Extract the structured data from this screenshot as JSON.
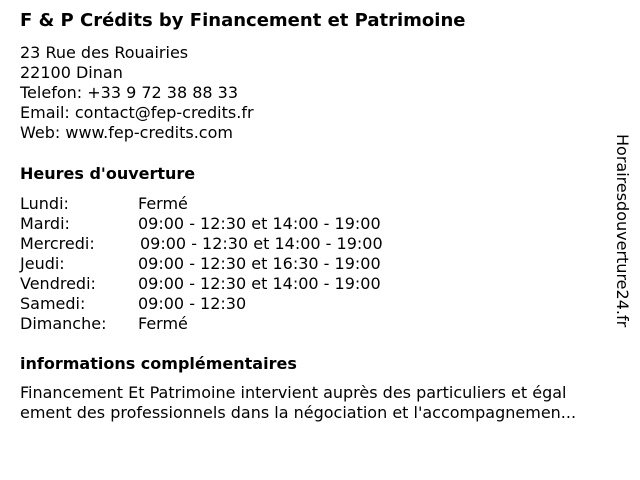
{
  "title": "F & P Crédits by Financement et Patrimoine",
  "address": [
    "23 Rue des Rouairies",
    "22100 Dinan",
    "Telefon: +33 9 72 38 88 33",
    "Email: contact@fep-credits.fr",
    "Web: www.fep-credits.com"
  ],
  "hours_heading": "Heures d'ouverture",
  "hours": [
    {
      "day": "Lundi:",
      "time": "Fermé"
    },
    {
      "day": "Mardi:",
      "time": "09:00 - 12:30 et 14:00 - 19:00"
    },
    {
      "day": "Mercredi:",
      "time": "09:00 - 12:30 et 14:00 - 19:00"
    },
    {
      "day": "Jeudi:",
      "time": "09:00 - 12:30 et 16:30 - 19:00"
    },
    {
      "day": "Vendredi:",
      "time": "09:00 - 12:30 et 14:00 - 19:00"
    },
    {
      "day": "Samedi:",
      "time": "09:00 - 12:30"
    },
    {
      "day": "Dimanche:",
      "time": "Fermé"
    }
  ],
  "info_heading": "informations complémentaires",
  "description": [
    "Financement Et Patrimoine intervient auprès des particuliers et égal",
    "ement des professionnels dans la négociation et l'accompagnemen..."
  ],
  "watermark": "Horairesdouverture24.fr"
}
